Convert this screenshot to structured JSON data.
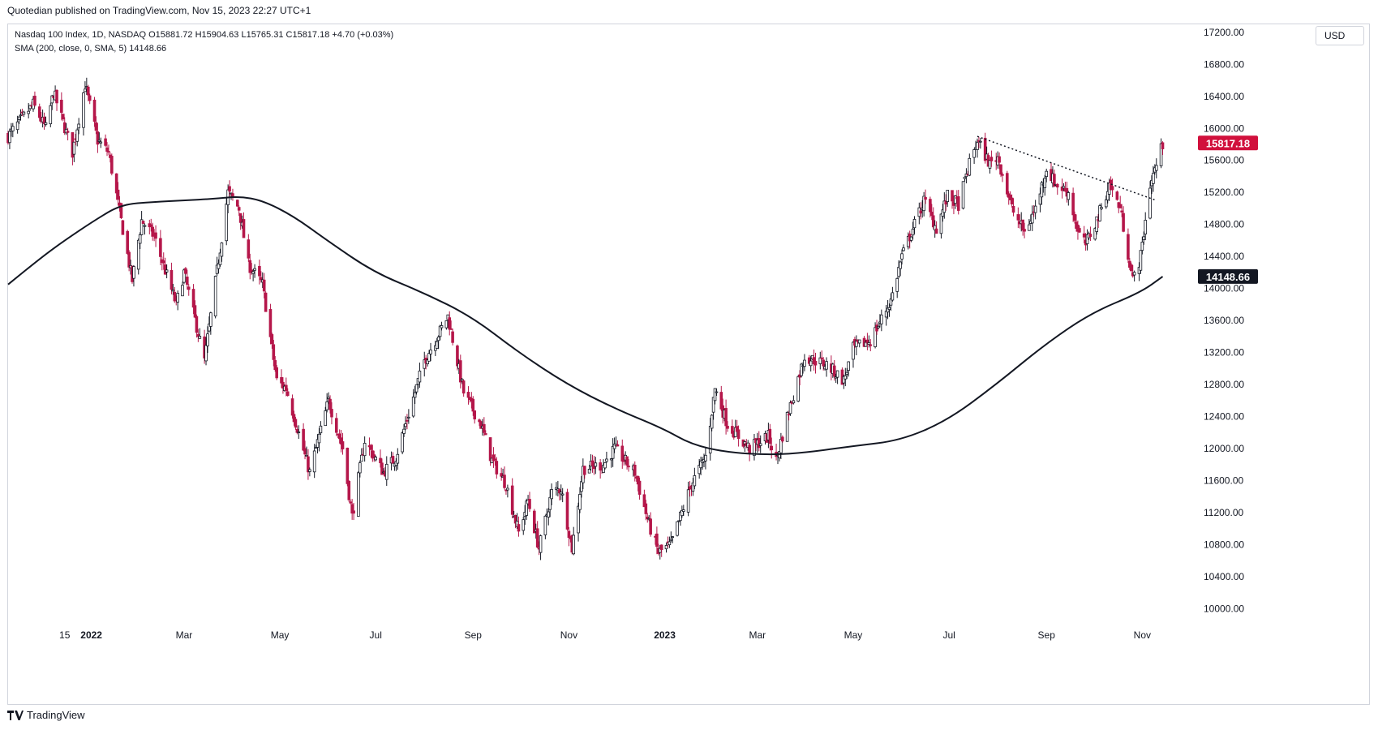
{
  "publish_line": "Quotedian published on TradingView.com, Nov 15, 2023 22:27 UTC+1",
  "legend": {
    "line1": "Nasdaq 100 Index, 1D, NASDAQ  O15881.72  H15904.63  L15765.31  C15817.18  +4.70 (+0.03%)",
    "line2": "SMA (200, close, 0, SMA, 5)  14148.66"
  },
  "currency_button": "USD",
  "footer_brand": "TradingView",
  "colors": {
    "up": "#131722",
    "down": "#b5174a",
    "price_badge": "#d1103c",
    "sma_badge": "#131722",
    "sma_line": "#131722"
  },
  "chart_data": {
    "type": "candlestick",
    "symbol": "Nasdaq 100 Index",
    "interval": "1D",
    "ylim": [
      9800,
      17300
    ],
    "y_ticks": [
      17200,
      16800,
      16400,
      16000,
      15600,
      15200,
      14800,
      14400,
      14000,
      13600,
      13200,
      12800,
      12400,
      12000,
      11600,
      11200,
      10800,
      10400,
      10000
    ],
    "y_tick_labels": [
      "17200.00",
      "16800.00",
      "16400.00",
      "16000.00",
      "15600.00",
      "15200.00",
      "14800.00",
      "14400.00",
      "14000.00",
      "13600.00",
      "13200.00",
      "12800.00",
      "12400.00",
      "12000.00",
      "11600.00",
      "11200.00",
      "10800.00",
      "10400.00",
      "10000.00"
    ],
    "x_range": [
      "2021-11-09",
      "2023-12-08"
    ],
    "x_ticks": [
      {
        "date": "2021-12-15",
        "label": "15",
        "bold": false
      },
      {
        "date": "2022-01-01",
        "label": "2022",
        "bold": true
      },
      {
        "date": "2022-03-01",
        "label": "Mar",
        "bold": false
      },
      {
        "date": "2022-05-01",
        "label": "May",
        "bold": false
      },
      {
        "date": "2022-07-01",
        "label": "Jul",
        "bold": false
      },
      {
        "date": "2022-09-01",
        "label": "Sep",
        "bold": false
      },
      {
        "date": "2022-11-01",
        "label": "Nov",
        "bold": false
      },
      {
        "date": "2023-01-01",
        "label": "2023",
        "bold": true
      },
      {
        "date": "2023-03-01",
        "label": "Mar",
        "bold": false
      },
      {
        "date": "2023-05-01",
        "label": "May",
        "bold": false
      },
      {
        "date": "2023-07-01",
        "label": "Jul",
        "bold": false
      },
      {
        "date": "2023-09-01",
        "label": "Sep",
        "bold": false
      },
      {
        "date": "2023-11-01",
        "label": "Nov",
        "bold": false
      }
    ],
    "close_path": [
      [
        "2021-11-09",
        15900
      ],
      [
        "2021-11-25",
        16300
      ],
      [
        "2021-12-03",
        16000
      ],
      [
        "2021-12-08",
        16450
      ],
      [
        "2021-12-20",
        15700
      ],
      [
        "2021-12-28",
        16550
      ],
      [
        "2022-01-05",
        15850
      ],
      [
        "2022-01-12",
        15700
      ],
      [
        "2022-01-27",
        14100
      ],
      [
        "2022-02-02",
        14850
      ],
      [
        "2022-02-10",
        14650
      ],
      [
        "2022-02-24",
        13800
      ],
      [
        "2022-03-01",
        14200
      ],
      [
        "2022-03-14",
        13100
      ],
      [
        "2022-03-29",
        15200
      ],
      [
        "2022-04-05",
        15000
      ],
      [
        "2022-04-11",
        14300
      ],
      [
        "2022-04-20",
        14050
      ],
      [
        "2022-04-29",
        12850
      ],
      [
        "2022-05-05",
        12750
      ],
      [
        "2022-05-20",
        11700
      ],
      [
        "2022-06-01",
        12600
      ],
      [
        "2022-06-10",
        12000
      ],
      [
        "2022-06-16",
        11150
      ],
      [
        "2022-06-24",
        12100
      ],
      [
        "2022-07-06",
        11700
      ],
      [
        "2022-07-14",
        11900
      ],
      [
        "2022-08-01",
        13100
      ],
      [
        "2022-08-16",
        13650
      ],
      [
        "2022-08-26",
        12700
      ],
      [
        "2022-09-06",
        12300
      ],
      [
        "2022-09-13",
        11850
      ],
      [
        "2022-09-22",
        11550
      ],
      [
        "2022-09-30",
        10950
      ],
      [
        "2022-10-06",
        11350
      ],
      [
        "2022-10-13",
        10750
      ],
      [
        "2022-10-21",
        11450
      ],
      [
        "2022-10-27",
        11500
      ],
      [
        "2022-11-03",
        10750
      ],
      [
        "2022-11-10",
        11750
      ],
      [
        "2022-11-23",
        11800
      ],
      [
        "2022-11-30",
        12000
      ],
      [
        "2022-12-13",
        11700
      ],
      [
        "2022-12-22",
        11050
      ],
      [
        "2022-12-28",
        10700
      ],
      [
        "2023-01-05",
        10800
      ],
      [
        "2023-01-18",
        11550
      ],
      [
        "2023-01-27",
        11900
      ],
      [
        "2023-02-02",
        12750
      ],
      [
        "2023-02-10",
        12300
      ],
      [
        "2023-02-24",
        12000
      ],
      [
        "2023-03-08",
        12150
      ],
      [
        "2023-03-13",
        11850
      ],
      [
        "2023-03-20",
        12400
      ],
      [
        "2023-03-31",
        13150
      ],
      [
        "2023-04-14",
        13050
      ],
      [
        "2023-04-25",
        12850
      ],
      [
        "2023-05-01",
        13250
      ],
      [
        "2023-05-12",
        13350
      ],
      [
        "2023-05-25",
        13850
      ],
      [
        "2023-06-01",
        14400
      ],
      [
        "2023-06-15",
        15100
      ],
      [
        "2023-06-23",
        14750
      ],
      [
        "2023-06-30",
        15150
      ],
      [
        "2023-07-07",
        15050
      ],
      [
        "2023-07-14",
        15550
      ],
      [
        "2023-07-19",
        15850
      ],
      [
        "2023-07-27",
        15550
      ],
      [
        "2023-08-01",
        15650
      ],
      [
        "2023-08-10",
        15000
      ],
      [
        "2023-08-18",
        14700
      ],
      [
        "2023-08-25",
        15000
      ],
      [
        "2023-09-01",
        15500
      ],
      [
        "2023-09-07",
        15300
      ],
      [
        "2023-09-15",
        15200
      ],
      [
        "2023-09-21",
        14700
      ],
      [
        "2023-09-26",
        14550
      ],
      [
        "2023-10-04",
        14900
      ],
      [
        "2023-10-11",
        15300
      ],
      [
        "2023-10-18",
        15000
      ],
      [
        "2023-10-26",
        14100
      ],
      [
        "2023-10-31",
        14400
      ],
      [
        "2023-11-06",
        15300
      ],
      [
        "2023-11-10",
        15550
      ],
      [
        "2023-11-14",
        15800
      ]
    ],
    "sma_200": [
      [
        "2021-11-09",
        14050
      ],
      [
        "2021-12-01",
        14400
      ],
      [
        "2021-12-15",
        14600
      ],
      [
        "2022-01-03",
        14850
      ],
      [
        "2022-01-20",
        15050
      ],
      [
        "2022-02-10",
        15080
      ],
      [
        "2022-03-01",
        15100
      ],
      [
        "2022-03-20",
        15120
      ],
      [
        "2022-04-05",
        15150
      ],
      [
        "2022-04-20",
        15100
      ],
      [
        "2022-05-10",
        14900
      ],
      [
        "2022-05-31",
        14600
      ],
      [
        "2022-06-30",
        14200
      ],
      [
        "2022-07-31",
        13950
      ],
      [
        "2022-08-31",
        13650
      ],
      [
        "2022-09-30",
        13200
      ],
      [
        "2022-10-31",
        12800
      ],
      [
        "2022-11-30",
        12500
      ],
      [
        "2022-12-31",
        12250
      ],
      [
        "2023-01-18",
        12050
      ],
      [
        "2023-02-10",
        11950
      ],
      [
        "2023-03-10",
        11920
      ],
      [
        "2023-04-01",
        11950
      ],
      [
        "2023-05-01",
        12030
      ],
      [
        "2023-05-31",
        12100
      ],
      [
        "2023-06-30",
        12350
      ],
      [
        "2023-07-31",
        12800
      ],
      [
        "2023-08-31",
        13300
      ],
      [
        "2023-09-30",
        13700
      ],
      [
        "2023-10-31",
        13950
      ],
      [
        "2023-11-14",
        14148.66
      ]
    ],
    "trendline": {
      "start": [
        "2023-07-19",
        15900
      ],
      "end": [
        "2023-11-10",
        15100
      ],
      "style": "dotted"
    },
    "last_price": {
      "value": 15817.18,
      "label": "15817.18"
    },
    "sma_value": {
      "value": 14148.66,
      "label": "14148.66"
    }
  }
}
